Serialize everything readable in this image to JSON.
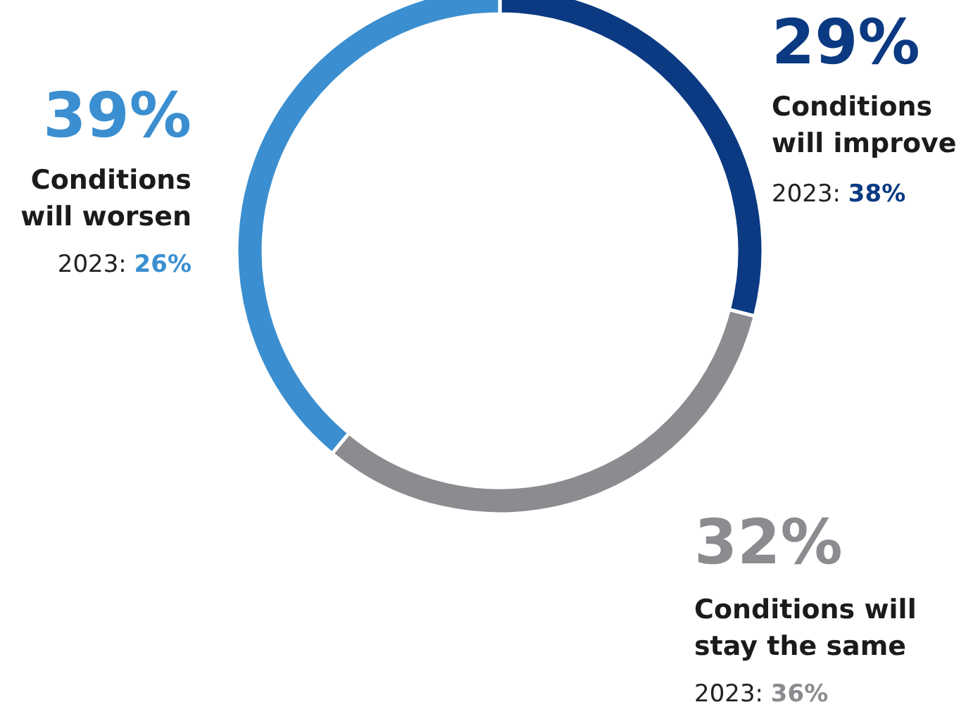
{
  "chart_data": {
    "type": "donut",
    "categories": [
      "Conditions will improve",
      "Conditions will stay the same",
      "Conditions will worsen"
    ],
    "values": [
      29,
      32,
      39
    ],
    "colors": [
      "#0b3a82",
      "#8b8c8f",
      "#3b8fd0"
    ],
    "value_labels": [
      "29%",
      "32%",
      "39%"
    ],
    "annotations": [
      "2023: 38%",
      "2023: 36%",
      "2023: 26%"
    ]
  }
}
